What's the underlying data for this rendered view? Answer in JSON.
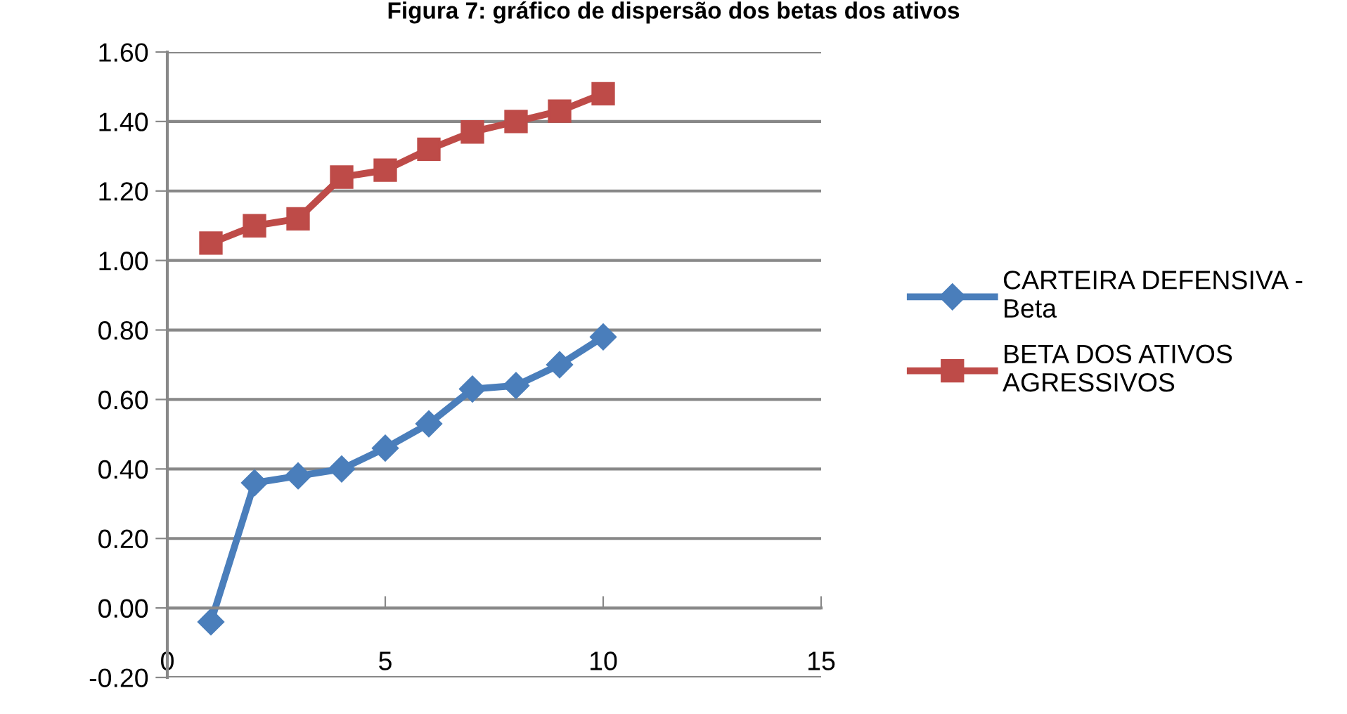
{
  "chart_data": {
    "type": "line",
    "title": "Figura 7: gráfico de dispersão dos betas dos ativos",
    "x": [
      1,
      2,
      3,
      4,
      5,
      6,
      7,
      8,
      9,
      10
    ],
    "series": [
      {
        "name": "CARTEIRA DEFENSIVA - Beta",
        "color": "#4a7ebb",
        "marker": "diamond",
        "values": [
          -0.04,
          0.36,
          0.38,
          0.4,
          0.46,
          0.53,
          0.63,
          0.64,
          0.7,
          0.78
        ]
      },
      {
        "name": "BETA DOS ATIVOS AGRESSIVOS",
        "color": "#be4b48",
        "marker": "square",
        "values": [
          1.05,
          1.1,
          1.12,
          1.24,
          1.26,
          1.32,
          1.37,
          1.4,
          1.43,
          1.48
        ]
      }
    ],
    "xlim": [
      0,
      15
    ],
    "xticks": [
      0,
      5,
      10,
      15
    ],
    "ylim": [
      -0.2,
      1.6
    ],
    "yticks": [
      {
        "value": -0.2,
        "label": "-0.20"
      },
      {
        "value": 0,
        "label": "0.00"
      },
      {
        "value": 0.2,
        "label": "0.20"
      },
      {
        "value": 0.4,
        "label": "0.40"
      },
      {
        "value": 0.6,
        "label": "0.60"
      },
      {
        "value": 0.8,
        "label": "0.80"
      },
      {
        "value": 1.0,
        "label": "1.00"
      },
      {
        "value": 1.2,
        "label": "1.20"
      },
      {
        "value": 1.4,
        "label": "1.40"
      },
      {
        "value": 1.6,
        "label": "1.60"
      }
    ],
    "grid": "y",
    "legend": "right",
    "line_style": "solid"
  }
}
